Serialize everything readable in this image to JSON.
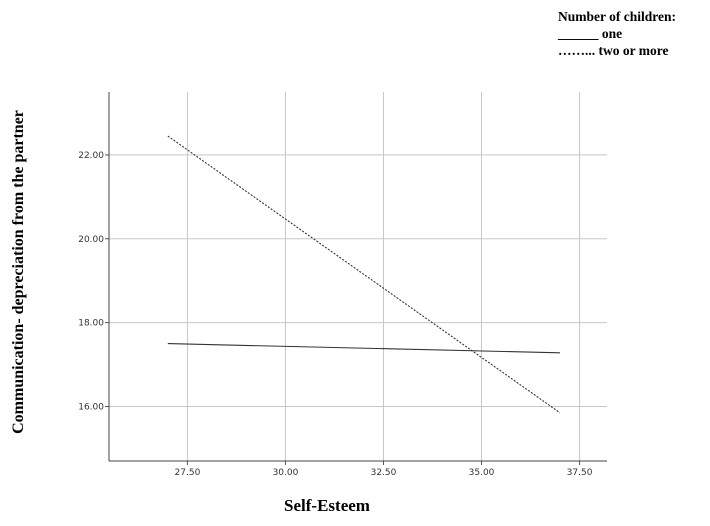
{
  "chart_data": {
    "type": "line",
    "title": "",
    "xlabel": "Self-Esteem",
    "ylabel": "Communication- depreciation from the partner",
    "xlim": [
      25.5,
      38.2
    ],
    "ylim": [
      14.7,
      23.5
    ],
    "x_ticks": [
      "27.50",
      "30.00",
      "32.50",
      "35.00",
      "37.50"
    ],
    "y_ticks": [
      "16.00",
      "18.00",
      "20.00",
      "22.00"
    ],
    "grid": true,
    "legend": {
      "title": "Number of children:",
      "entries": [
        "______ one",
        "……... two or more"
      ],
      "placement": "top-right"
    },
    "series": [
      {
        "name": "one",
        "style": "solid",
        "x": [
          27,
          37
        ],
        "y": [
          17.5,
          17.28
        ]
      },
      {
        "name": "two or more",
        "style": "dotted",
        "x": [
          27,
          37
        ],
        "y": [
          22.45,
          15.85
        ]
      }
    ]
  }
}
